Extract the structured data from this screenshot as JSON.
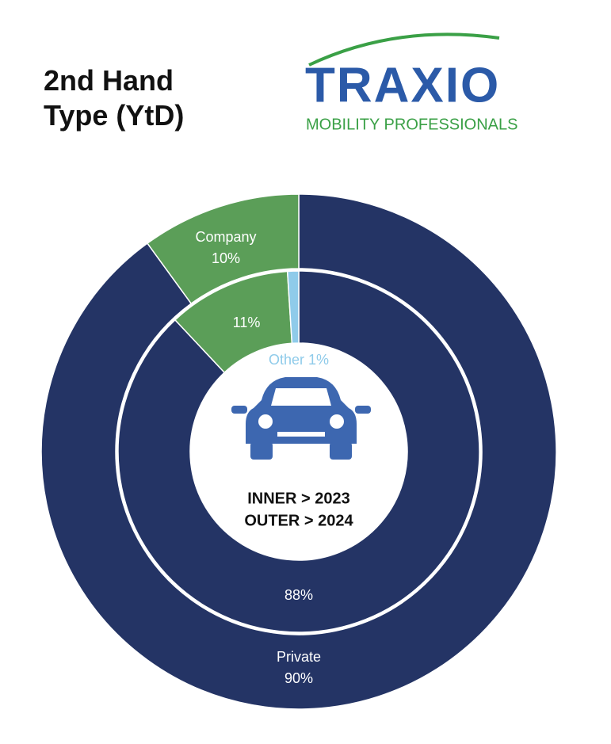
{
  "logo": {
    "name": "TRAXIO",
    "tagline": "MOBILITY PROFESSIONALS"
  },
  "chart_data": {
    "type": "donut",
    "title": "2nd Hand Type (YtD)",
    "center_labels": [
      "INNER > 2023",
      "OUTER > 2024"
    ],
    "rings": [
      {
        "categories": [
          null,
          null,
          "Other"
        ],
        "values": [
          88,
          11,
          1
        ],
        "value_labels": [
          "88%",
          "11%",
          "1%"
        ],
        "colors": [
          "#243465",
          "#5b9e58",
          "#8fcbea"
        ]
      },
      {
        "categories": [
          "Private",
          "Company"
        ],
        "values": [
          90,
          10
        ],
        "value_labels": [
          "90%",
          "10%"
        ],
        "colors": [
          "#243465",
          "#5b9e58"
        ]
      }
    ]
  }
}
